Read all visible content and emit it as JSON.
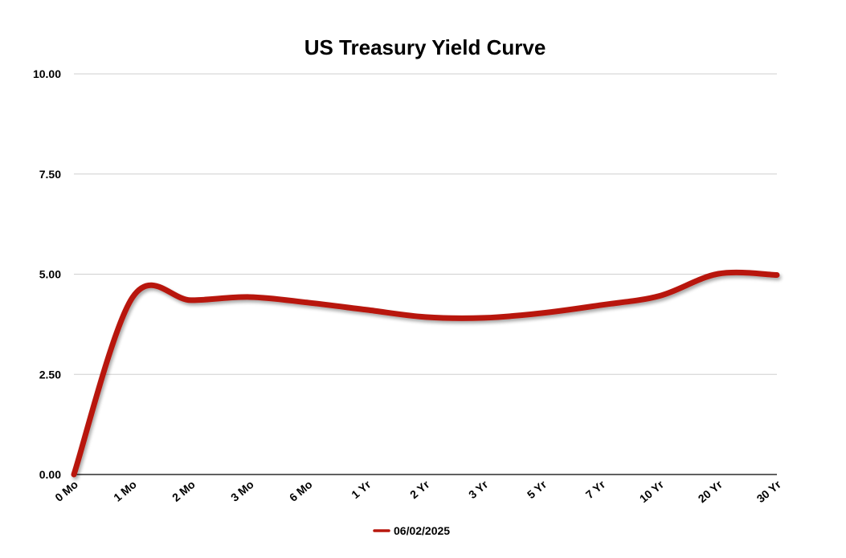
{
  "chart_data": {
    "type": "line",
    "title": "US Treasury Yield Curve",
    "xlabel": "",
    "ylabel": "",
    "categories": [
      "0 Mo",
      "1 Mo",
      "2 Mo",
      "3 Mo",
      "6 Mo",
      "1 Yr",
      "2 Yr",
      "3 Yr",
      "5 Yr",
      "7 Yr",
      "10 Yr",
      "20 Yr",
      "30 Yr"
    ],
    "series": [
      {
        "name": "06/02/2025",
        "color": "#b8170d",
        "values": [
          0.0,
          4.42,
          4.35,
          4.43,
          4.29,
          4.11,
          3.93,
          3.91,
          4.03,
          4.23,
          4.46,
          5.01,
          4.98
        ]
      }
    ],
    "ylim": [
      0,
      10
    ],
    "yticks": [
      "0.00",
      "2.50",
      "5.00",
      "7.50",
      "10.00"
    ],
    "ytick_values": [
      0,
      2.5,
      5,
      7.5,
      10
    ],
    "grid": true,
    "legend_position": "bottom",
    "line_smoothing": "curved"
  }
}
